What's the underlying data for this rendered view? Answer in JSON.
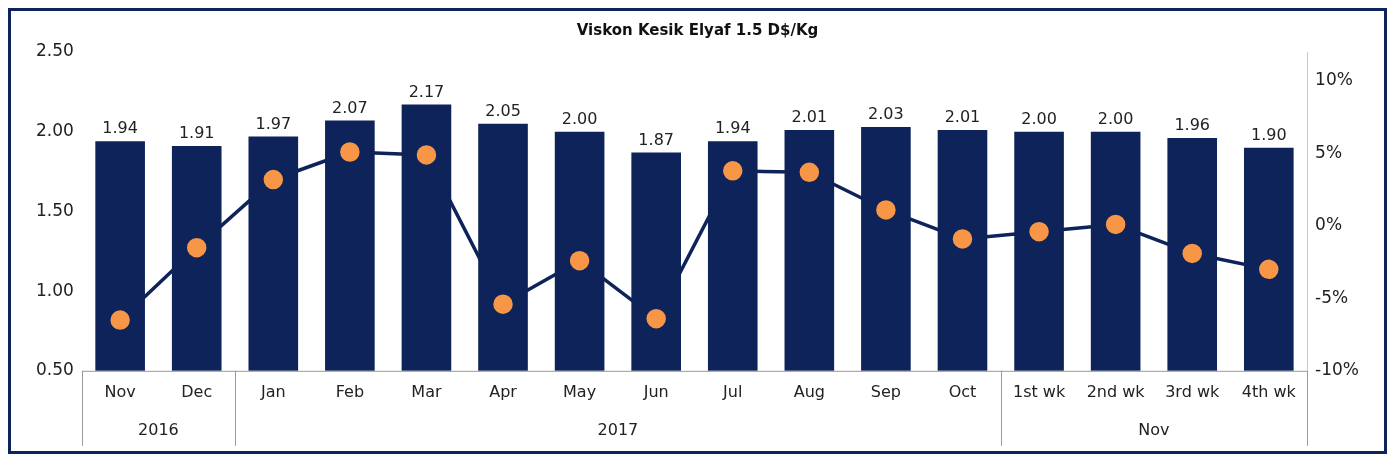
{
  "chart_data": {
    "type": "bar",
    "title": "Viskon Kesik Elyaf 1.5 D$/Kg",
    "categories": [
      "Nov",
      "Dec",
      "Jan",
      "Feb",
      "Mar",
      "Apr",
      "May",
      "Jun",
      "Jul",
      "Aug",
      "Sep",
      "Oct",
      "1st wk",
      "2nd wk",
      "3rd wk",
      "4th wk"
    ],
    "series": [
      {
        "color": "#0d2359",
        "values": [
          1.94,
          1.91,
          1.97,
          2.07,
          2.17,
          2.05,
          2.0,
          1.87,
          1.94,
          2.01,
          2.03,
          2.01,
          2.0,
          2.0,
          1.96,
          1.9
        ],
        "value_labels": [
          "1.94",
          "1.91",
          "1.97",
          "2.07",
          "2.17",
          "2.05",
          "2.00",
          "1.87",
          "1.94",
          "2.01",
          "2.03",
          "2.01",
          "2.00",
          "2.00",
          "1.96",
          "1.90"
        ]
      },
      {
        "type": "line",
        "axis": "y2",
        "color": "#0d2359",
        "marker": "circle",
        "values": [
          -6.5,
          -1.5,
          3.2,
          5.1,
          4.9,
          -5.4,
          -2.4,
          -6.4,
          3.8,
          3.7,
          1.1,
          -0.9,
          -0.4,
          0.1,
          -1.9,
          -3.0
        ]
      }
    ],
    "ylim": [
      0.5,
      2.5
    ],
    "yticks": [
      {
        "value": 0.5,
        "label": "0.50"
      },
      {
        "value": 1,
        "label": "1.00"
      },
      {
        "value": 1.5,
        "label": "1.50"
      },
      {
        "value": 2,
        "label": "2.00"
      },
      {
        "value": 2.5,
        "label": "2.50"
      }
    ],
    "y2lim": [
      -10,
      12
    ],
    "y2ticks": [
      {
        "value": -10,
        "label": "-10%"
      },
      {
        "value": -5,
        "label": "-5%"
      },
      {
        "value": 0,
        "label": "0%"
      },
      {
        "value": 5,
        "label": "5%"
      },
      {
        "value": 10,
        "label": "10%"
      }
    ],
    "annotations": [
      "2016",
      "2017",
      "Nov"
    ],
    "grid": false,
    "legend": false
  }
}
